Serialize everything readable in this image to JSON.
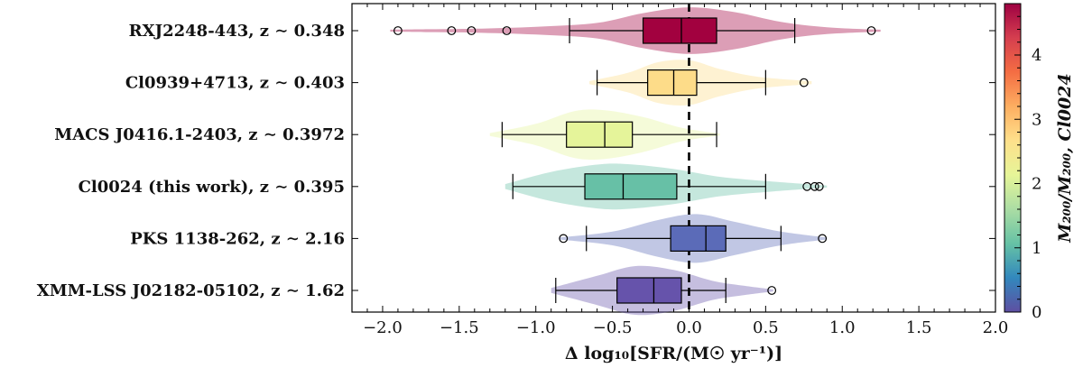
{
  "chart_data": {
    "type": "violin-box",
    "xlabel": "Δ log₁₀[SFR/(M☉ yr⁻¹)]",
    "xlim": [
      -2.2,
      2.0
    ],
    "xticks": [
      -2.0,
      -1.5,
      -1.0,
      -0.5,
      0.0,
      0.5,
      1.0,
      1.5,
      2.0
    ],
    "xtick_labels": [
      "−2.0",
      "−1.5",
      "−1.0",
      "−0.5",
      "0.0",
      "0.5",
      "1.0",
      "1.5",
      "2.0"
    ],
    "reference_line_x": 0.0,
    "colorbar": {
      "label": "M₂₀₀/M₂₀₀, Cl0024",
      "range": [
        0,
        4.8
      ],
      "ticks": [
        0,
        1,
        2,
        3,
        4
      ],
      "stops": [
        "#5e4fa2",
        "#3288bd",
        "#66c2a5",
        "#abdda4",
        "#e6f598",
        "#fee08b",
        "#fdae61",
        "#f46d43",
        "#d53e4f",
        "#9e0142"
      ]
    },
    "clusters": [
      {
        "label": "RXJ2248-443, z ∼ 0.348",
        "color": "#a2013f",
        "violin_range": [
          -1.95,
          1.25
        ],
        "violin_profile": [
          [
            -1.95,
            0.02
          ],
          [
            -1.7,
            0.03
          ],
          [
            -1.4,
            0.04
          ],
          [
            -1.0,
            0.08
          ],
          [
            -0.6,
            0.16
          ],
          [
            -0.3,
            0.36
          ],
          [
            0.0,
            0.48
          ],
          [
            0.3,
            0.38
          ],
          [
            0.6,
            0.18
          ],
          [
            0.9,
            0.07
          ],
          [
            1.25,
            0.02
          ]
        ],
        "whiskers": [
          -0.78,
          0.69
        ],
        "box": [
          -0.3,
          0.18
        ],
        "median": -0.05,
        "outliers": [
          -1.9,
          -1.55,
          -1.42,
          -1.19,
          1.19
        ]
      },
      {
        "label": "Cl0939+4713, z ∼ 0.403",
        "color": "#fddc89",
        "violin_range": [
          -0.65,
          0.8
        ],
        "violin_profile": [
          [
            -0.65,
            0.03
          ],
          [
            -0.4,
            0.2
          ],
          [
            -0.2,
            0.42
          ],
          [
            0.0,
            0.46
          ],
          [
            0.2,
            0.28
          ],
          [
            0.45,
            0.12
          ],
          [
            0.8,
            0.03
          ]
        ],
        "whiskers": [
          -0.6,
          0.5
        ],
        "box": [
          -0.27,
          0.05
        ],
        "median": -0.1,
        "outliers": [
          0.75
        ]
      },
      {
        "label": "MACS J0416.1-2403, z ∼ 0.3972",
        "color": "#e5f49a",
        "violin_range": [
          -1.3,
          0.2
        ],
        "violin_profile": [
          [
            -1.3,
            0.03
          ],
          [
            -1.0,
            0.22
          ],
          [
            -0.75,
            0.48
          ],
          [
            -0.55,
            0.5
          ],
          [
            -0.3,
            0.36
          ],
          [
            -0.05,
            0.14
          ],
          [
            0.2,
            0.02
          ]
        ],
        "whiskers": [
          -1.22,
          0.18
        ],
        "box": [
          -0.8,
          -0.37
        ],
        "median": -0.55,
        "outliers": []
      },
      {
        "label": "Cl0024 (this work), z ∼ 0.395",
        "color": "#67c0a6",
        "violin_range": [
          -1.2,
          0.9
        ],
        "violin_profile": [
          [
            -1.2,
            0.05
          ],
          [
            -0.9,
            0.3
          ],
          [
            -0.6,
            0.45
          ],
          [
            -0.4,
            0.46
          ],
          [
            -0.1,
            0.36
          ],
          [
            0.2,
            0.2
          ],
          [
            0.55,
            0.1
          ],
          [
            0.9,
            0.02
          ]
        ],
        "whiskers": [
          -1.15,
          0.5
        ],
        "box": [
          -0.68,
          -0.08
        ],
        "median": -0.43,
        "outliers": [
          0.77,
          0.82,
          0.85
        ]
      },
      {
        "label": "PKS 1138-262, z ∼ 2.16",
        "color": "#5b6bb8",
        "violin_range": [
          -0.85,
          0.9
        ],
        "violin_profile": [
          [
            -0.85,
            0.02
          ],
          [
            -0.5,
            0.14
          ],
          [
            -0.2,
            0.38
          ],
          [
            0.05,
            0.5
          ],
          [
            0.3,
            0.34
          ],
          [
            0.6,
            0.14
          ],
          [
            0.9,
            0.02
          ]
        ],
        "whiskers": [
          -0.67,
          0.6
        ],
        "box": [
          -0.12,
          0.24
        ],
        "median": 0.11,
        "outliers": [
          -0.82,
          0.87
        ]
      },
      {
        "label": "XMM-LSS J02182-05102, z ∼ 1.62",
        "color": "#6653ab",
        "violin_range": [
          -0.9,
          0.55
        ],
        "violin_profile": [
          [
            -0.9,
            0.05
          ],
          [
            -0.6,
            0.3
          ],
          [
            -0.35,
            0.5
          ],
          [
            -0.1,
            0.42
          ],
          [
            0.15,
            0.2
          ],
          [
            0.35,
            0.1
          ],
          [
            0.55,
            0.02
          ]
        ],
        "whiskers": [
          -0.87,
          0.24
        ],
        "box": [
          -0.47,
          -0.05
        ],
        "median": -0.23,
        "outliers": [
          0.54
        ]
      }
    ]
  }
}
